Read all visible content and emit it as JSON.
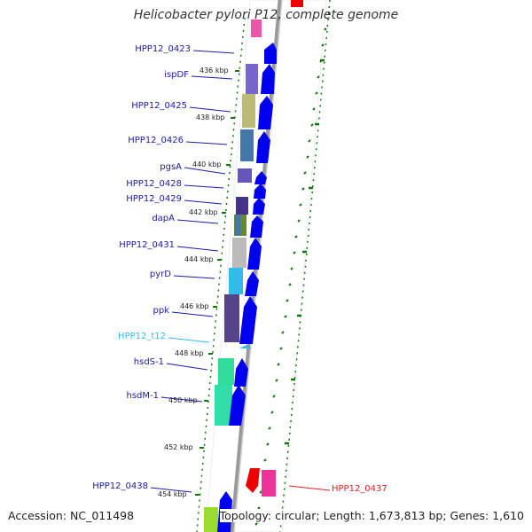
{
  "title": "Helicobacter pylori P12, complete genome",
  "footer": {
    "accession": "Accession: NC_011498",
    "info": "Topology: circular; Length: 1,673,813 bp; Genes: 1,610"
  },
  "colors": {
    "gene_label": "#1a1aaa",
    "trna_label": "#33bbee",
    "reverse_label": "#dd2222",
    "forward_arrow": "#0000ee",
    "reverse_arrow": "#ee0000",
    "backbone": "#888888",
    "tick": "#117711"
  },
  "scale_labels": [
    "436 kbp",
    "438 kbp",
    "440 kbp",
    "442 kbp",
    "444 kbp",
    "446 kbp",
    "448 kbp",
    "450 kbp",
    "452 kbp",
    "454 kbp"
  ],
  "genes": [
    {
      "id": "HPP12_0423",
      "type": "cds"
    },
    {
      "id": "ispDF",
      "type": "cds"
    },
    {
      "id": "HPP12_0425",
      "type": "cds"
    },
    {
      "id": "HPP12_0426",
      "type": "cds"
    },
    {
      "id": "pgsA",
      "type": "cds"
    },
    {
      "id": "HPP12_0428",
      "type": "cds"
    },
    {
      "id": "HPP12_0429",
      "type": "cds"
    },
    {
      "id": "dapA",
      "type": "cds"
    },
    {
      "id": "HPP12_0431",
      "type": "cds"
    },
    {
      "id": "pyrD",
      "type": "cds"
    },
    {
      "id": "ppk",
      "type": "cds"
    },
    {
      "id": "HPP12_t12",
      "type": "trna"
    },
    {
      "id": "hsdS-1",
      "type": "cds"
    },
    {
      "id": "hsdM-1",
      "type": "cds"
    },
    {
      "id": "HPP12_0438",
      "type": "cds"
    },
    {
      "id": "HPP12_0437",
      "type": "cds-reverse"
    }
  ]
}
